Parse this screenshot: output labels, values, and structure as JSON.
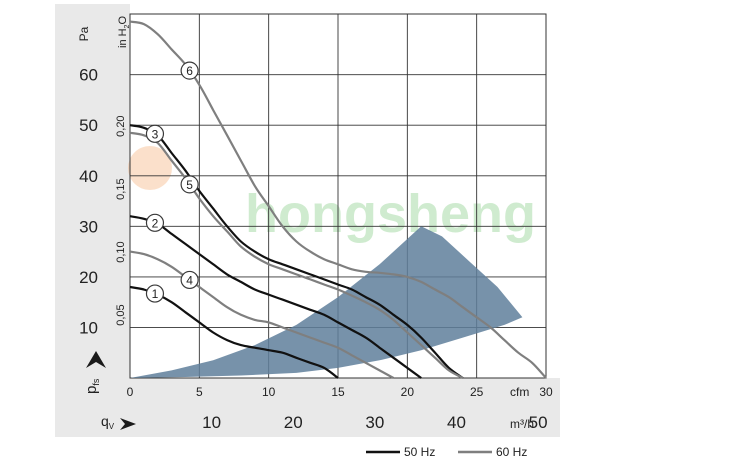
{
  "chart_data": {
    "type": "line",
    "title": "",
    "pa_axis": {
      "unit_label": "Pa",
      "range": [
        0,
        72
      ],
      "ticks": [
        10,
        20,
        30,
        40,
        50,
        60
      ],
      "label_main": "p",
      "label_sub": "fs"
    },
    "inh2o_axis": {
      "unit_label": "in H",
      "unit_sub": "2",
      "unit_tail": "O",
      "ticks": [
        {
          "value": 0.05,
          "label": "0,05"
        },
        {
          "value": 0.1,
          "label": "0,10"
        },
        {
          "value": 0.15,
          "label": "0,15"
        },
        {
          "value": 0.2,
          "label": "0,20"
        }
      ]
    },
    "cfm_axis": {
      "unit_label": "cfm",
      "range": [
        0,
        30
      ],
      "ticks": [
        0,
        5,
        10,
        15,
        20,
        25,
        30
      ]
    },
    "m3h_axis": {
      "unit_label": "m³/h",
      "label_main": "q",
      "label_sub": "V",
      "ticks": [
        10,
        20,
        30,
        40,
        50
      ]
    },
    "legend": [
      {
        "label": "50 Hz",
        "color": "#111111"
      },
      {
        "label": "60 Hz",
        "color": "#7f7f7f"
      }
    ],
    "watermark": "hongsheng",
    "series": [
      {
        "name": "6",
        "hz": "60 Hz",
        "points": [
          [
            0,
            70.5
          ],
          [
            1,
            70
          ],
          [
            2,
            68
          ],
          [
            3,
            65
          ],
          [
            4,
            62
          ],
          [
            5,
            58
          ],
          [
            6,
            53
          ],
          [
            7,
            48
          ],
          [
            8,
            43
          ],
          [
            9,
            38
          ],
          [
            10,
            34
          ],
          [
            11,
            30
          ],
          [
            12,
            27
          ],
          [
            13,
            25
          ],
          [
            14,
            23.5
          ],
          [
            15,
            22.5
          ],
          [
            16,
            21.5
          ],
          [
            17,
            21
          ],
          [
            18,
            20.8
          ],
          [
            19,
            20.5
          ],
          [
            20,
            20
          ],
          [
            21,
            19
          ],
          [
            22,
            17.5
          ],
          [
            23,
            16
          ],
          [
            24,
            14
          ],
          [
            25,
            12
          ],
          [
            26,
            10
          ],
          [
            27,
            7.5
          ],
          [
            28,
            5
          ],
          [
            29,
            3
          ],
          [
            30,
            0
          ]
        ]
      },
      {
        "name": "3",
        "hz": "50 Hz",
        "points": [
          [
            0,
            50
          ],
          [
            1,
            49.5
          ],
          [
            2,
            48
          ],
          [
            3,
            44.5
          ],
          [
            4,
            41
          ],
          [
            5,
            37
          ],
          [
            6,
            33.5
          ],
          [
            7,
            30
          ],
          [
            8,
            27
          ],
          [
            9,
            25
          ],
          [
            10,
            23.5
          ],
          [
            11,
            22.5
          ],
          [
            12,
            21.5
          ],
          [
            13,
            20.5
          ],
          [
            14,
            19.5
          ],
          [
            15,
            18.5
          ],
          [
            16,
            17.5
          ],
          [
            17,
            16
          ],
          [
            18,
            14.5
          ],
          [
            19,
            12.5
          ],
          [
            20,
            10.5
          ],
          [
            21,
            8
          ],
          [
            22,
            5
          ],
          [
            23,
            2
          ],
          [
            24,
            0
          ]
        ]
      },
      {
        "name": "5",
        "hz": "60 Hz",
        "points": [
          [
            0,
            48.5
          ],
          [
            1,
            48
          ],
          [
            2,
            46.5
          ],
          [
            3,
            43
          ],
          [
            4,
            39.5
          ],
          [
            5,
            35.5
          ],
          [
            6,
            32
          ],
          [
            7,
            29
          ],
          [
            8,
            26
          ],
          [
            9,
            24
          ],
          [
            10,
            22.5
          ],
          [
            11,
            21.5
          ],
          [
            12,
            20.5
          ],
          [
            13,
            19.5
          ],
          [
            14,
            18.5
          ],
          [
            15,
            17.5
          ],
          [
            16,
            16.3
          ],
          [
            17,
            15
          ],
          [
            18,
            13.5
          ],
          [
            19,
            11.5
          ],
          [
            20,
            9
          ],
          [
            21,
            6.5
          ],
          [
            22,
            4
          ],
          [
            23,
            1.5
          ],
          [
            24,
            0
          ]
        ]
      },
      {
        "name": "2",
        "hz": "50 Hz",
        "points": [
          [
            0,
            32
          ],
          [
            1,
            31.5
          ],
          [
            2,
            30.5
          ],
          [
            3,
            28.5
          ],
          [
            4,
            26.5
          ],
          [
            5,
            24.5
          ],
          [
            6,
            22.5
          ],
          [
            7,
            20.5
          ],
          [
            8,
            19
          ],
          [
            9,
            17.5
          ],
          [
            10,
            16.5
          ],
          [
            11,
            15.5
          ],
          [
            12,
            14.5
          ],
          [
            13,
            13.5
          ],
          [
            14,
            12.5
          ],
          [
            15,
            11
          ],
          [
            16,
            9.5
          ],
          [
            17,
            8
          ],
          [
            18,
            6
          ],
          [
            19,
            4
          ],
          [
            20,
            2
          ],
          [
            21,
            0
          ]
        ]
      },
      {
        "name": "4",
        "hz": "60 Hz",
        "points": [
          [
            0,
            25
          ],
          [
            1,
            24.5
          ],
          [
            2,
            23.5
          ],
          [
            3,
            22
          ],
          [
            4,
            20
          ],
          [
            5,
            18
          ],
          [
            6,
            16
          ],
          [
            7,
            14
          ],
          [
            8,
            12.5
          ],
          [
            9,
            11.5
          ],
          [
            10,
            11
          ],
          [
            11,
            10
          ],
          [
            12,
            9
          ],
          [
            13,
            8
          ],
          [
            14,
            7
          ],
          [
            15,
            6
          ],
          [
            16,
            4.5
          ],
          [
            17,
            3
          ],
          [
            18,
            1.5
          ],
          [
            19,
            0
          ]
        ]
      },
      {
        "name": "1",
        "hz": "50 Hz",
        "points": [
          [
            0,
            18
          ],
          [
            1,
            17.5
          ],
          [
            2,
            16.5
          ],
          [
            3,
            15
          ],
          [
            4,
            13
          ],
          [
            5,
            11
          ],
          [
            6,
            9
          ],
          [
            7,
            7.5
          ],
          [
            8,
            6.5
          ],
          [
            9,
            6
          ],
          [
            10,
            5.5
          ],
          [
            11,
            5
          ],
          [
            12,
            4
          ],
          [
            13,
            3
          ],
          [
            14,
            2
          ],
          [
            15,
            0
          ]
        ]
      }
    ],
    "region": [
      [
        0,
        0
      ],
      [
        3,
        1.5
      ],
      [
        6,
        3.5
      ],
      [
        9,
        6.5
      ],
      [
        12,
        10.5
      ],
      [
        15,
        16
      ],
      [
        18,
        22.5
      ],
      [
        21,
        30
      ],
      [
        22.5,
        28
      ],
      [
        24.5,
        23
      ],
      [
        26.5,
        18
      ],
      [
        28.3,
        12
      ],
      [
        27,
        10.5
      ],
      [
        24,
        8
      ],
      [
        21,
        5.5
      ],
      [
        18,
        3.5
      ],
      [
        15,
        2
      ],
      [
        12,
        1
      ],
      [
        8,
        0.5
      ],
      [
        4,
        0.2
      ],
      [
        0,
        0
      ]
    ]
  }
}
